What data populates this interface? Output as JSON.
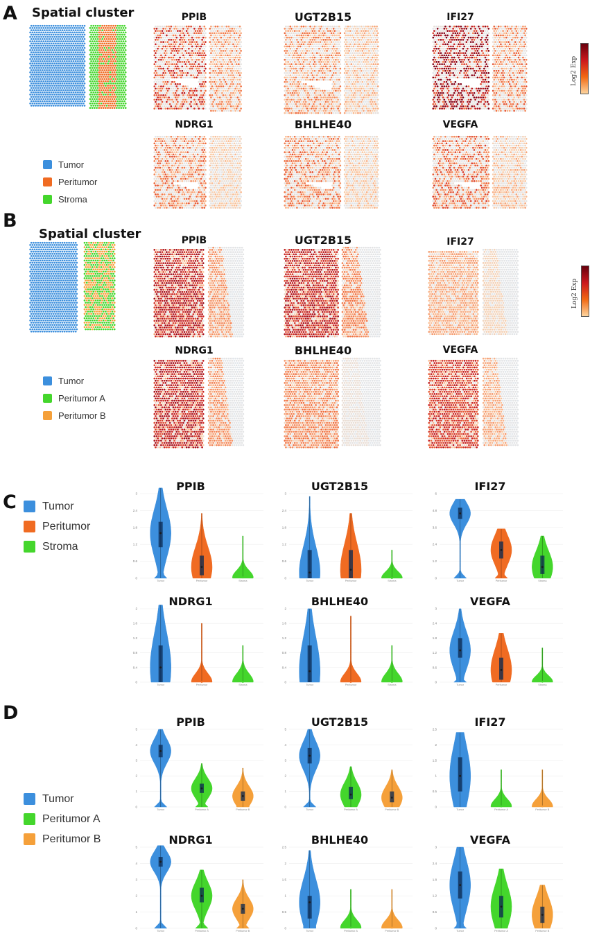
{
  "panels": [
    "A",
    "B",
    "C",
    "D"
  ],
  "cluster_title": "Spatial cluster",
  "colorbar_label": "Log2 Exp",
  "genes": [
    "PPIB",
    "UGT2B15",
    "IFI27",
    "NDRG1",
    "BHLHE40",
    "VEGFA"
  ],
  "legend_A": [
    {
      "label": "Tumor",
      "color": "#3c8fdd"
    },
    {
      "label": "Peritumor",
      "color": "#f06b22"
    },
    {
      "label": "Stroma",
      "color": "#44d62c"
    }
  ],
  "legend_B": [
    {
      "label": "Tumor",
      "color": "#3c8fdd"
    },
    {
      "label": "Peritumor A",
      "color": "#44d62c"
    },
    {
      "label": "Peritumor B",
      "color": "#f5a03a"
    }
  ],
  "chart_data": [
    {
      "panel": "C",
      "type": "violin",
      "groups": [
        "Tumor",
        "Peritumor",
        "Stroma"
      ],
      "colors": [
        "#3c8fdd",
        "#f06b22",
        "#44d62c"
      ],
      "genes": [
        {
          "name": "PPIB",
          "ylim": [
            0,
            3
          ],
          "medians": [
            1.6,
            0.4,
            0.03
          ],
          "q1": [
            1.1,
            0.1,
            0.0
          ],
          "q3": [
            2.0,
            0.8,
            0.05
          ],
          "max": [
            3.2,
            2.3,
            1.5
          ]
        },
        {
          "name": "UGT2B15",
          "ylim": [
            0,
            3
          ],
          "medians": [
            0.2,
            0.3,
            0.01
          ],
          "q1": [
            0.0,
            0.0,
            0.0
          ],
          "q3": [
            1.0,
            1.0,
            0.02
          ],
          "max": [
            2.9,
            2.3,
            1.0
          ]
        },
        {
          "name": "IFI27",
          "ylim": [
            0,
            6
          ],
          "medians": [
            4.6,
            2.0,
            0.8
          ],
          "q1": [
            4.2,
            1.4,
            0.3
          ],
          "q3": [
            5.0,
            2.6,
            1.6
          ],
          "max": [
            5.6,
            3.5,
            3.0
          ]
        },
        {
          "name": "NDRG1",
          "ylim": [
            0,
            2
          ],
          "medians": [
            0.4,
            0.01,
            0.01
          ],
          "q1": [
            0.0,
            0.0,
            0.0
          ],
          "q3": [
            1.0,
            0.02,
            0.02
          ],
          "max": [
            2.1,
            1.6,
            1.0
          ]
        },
        {
          "name": "BHLHE40",
          "ylim": [
            0,
            2
          ],
          "medians": [
            0.3,
            0.01,
            0.01
          ],
          "q1": [
            0.0,
            0.0,
            0.0
          ],
          "q3": [
            1.0,
            0.02,
            0.02
          ],
          "max": [
            2.0,
            1.8,
            1.0
          ]
        },
        {
          "name": "VEGFA",
          "ylim": [
            0,
            3
          ],
          "medians": [
            1.3,
            0.5,
            0.02
          ],
          "q1": [
            1.0,
            0.1,
            0.0
          ],
          "q3": [
            1.8,
            1.0,
            0.05
          ],
          "max": [
            3.0,
            2.0,
            1.4
          ]
        }
      ]
    },
    {
      "panel": "D",
      "type": "violin",
      "groups": [
        "Tumor",
        "Peritumor A",
        "Peritumor B"
      ],
      "colors": [
        "#3c8fdd",
        "#44d62c",
        "#f5a03a"
      ],
      "genes": [
        {
          "name": "PPIB",
          "ylim": [
            0,
            5
          ],
          "medians": [
            3.6,
            1.2,
            0.7
          ],
          "q1": [
            3.2,
            0.9,
            0.4
          ],
          "q3": [
            4.0,
            1.5,
            1.0
          ],
          "max": [
            5.0,
            2.8,
            2.5
          ]
        },
        {
          "name": "UGT2B15",
          "ylim": [
            0,
            5
          ],
          "medians": [
            3.3,
            0.8,
            0.6
          ],
          "q1": [
            2.8,
            0.5,
            0.3
          ],
          "q3": [
            3.8,
            1.3,
            1.0
          ],
          "max": [
            5.0,
            2.6,
            2.4
          ]
        },
        {
          "name": "IFI27",
          "ylim": [
            0,
            2.5
          ],
          "medians": [
            1.0,
            0.02,
            0.02
          ],
          "q1": [
            0.5,
            0.0,
            0.0
          ],
          "q3": [
            1.6,
            0.03,
            0.03
          ],
          "max": [
            2.4,
            1.2,
            1.2
          ]
        },
        {
          "name": "NDRG1",
          "ylim": [
            0,
            5
          ],
          "medians": [
            4.1,
            2.0,
            1.2
          ],
          "q1": [
            3.8,
            1.6,
            0.9
          ],
          "q3": [
            4.4,
            2.5,
            1.5
          ],
          "max": [
            5.1,
            3.6,
            3.0
          ]
        },
        {
          "name": "BHLHE40",
          "ylim": [
            0,
            2.5
          ],
          "medians": [
            0.8,
            0.02,
            0.02
          ],
          "q1": [
            0.3,
            0.0,
            0.0
          ],
          "q3": [
            1.0,
            0.03,
            0.03
          ],
          "max": [
            2.4,
            1.2,
            1.2
          ]
        },
        {
          "name": "VEGFA",
          "ylim": [
            0,
            3
          ],
          "medians": [
            1.6,
            0.8,
            0.5
          ],
          "q1": [
            1.1,
            0.4,
            0.2
          ],
          "q3": [
            2.1,
            1.2,
            0.8
          ],
          "max": [
            3.0,
            2.2,
            1.6
          ]
        }
      ]
    }
  ]
}
